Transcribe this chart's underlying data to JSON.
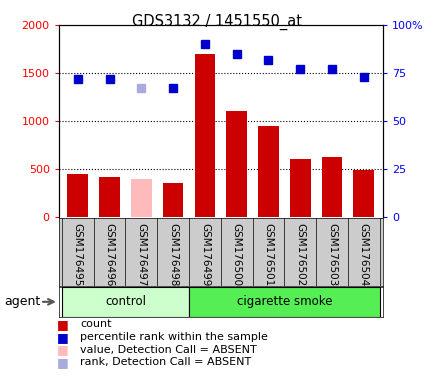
{
  "title": "GDS3132 / 1451550_at",
  "samples": [
    "GSM176495",
    "GSM176496",
    "GSM176497",
    "GSM176498",
    "GSM176499",
    "GSM176500",
    "GSM176501",
    "GSM176502",
    "GSM176503",
    "GSM176504"
  ],
  "counts": [
    450,
    420,
    400,
    350,
    1700,
    1100,
    950,
    600,
    620,
    490
  ],
  "percentile_ranks": [
    72,
    72,
    67,
    67,
    90,
    85,
    82,
    77,
    77,
    73
  ],
  "absent_indices": [
    2
  ],
  "bar_color_normal": "#cc0000",
  "bar_color_absent": "#ffbbbb",
  "dot_color_normal": "#0000cc",
  "dot_color_absent": "#aaaadd",
  "control_indices": [
    0,
    1,
    2,
    3
  ],
  "smoke_indices": [
    4,
    5,
    6,
    7,
    8,
    9
  ],
  "control_label": "control",
  "smoke_label": "cigarette smoke",
  "control_color": "#ccffcc",
  "smoke_color": "#55ee55",
  "ylim_left": [
    0,
    2000
  ],
  "ylim_right": [
    0,
    100
  ],
  "yticks_left": [
    0,
    500,
    1000,
    1500,
    2000
  ],
  "yticks_right": [
    0,
    25,
    50,
    75,
    100
  ],
  "yticklabels_right": [
    "0",
    "25",
    "50",
    "75",
    "100%"
  ],
  "grid_values": [
    500,
    1000,
    1500
  ],
  "plot_bg_color": "#ffffff",
  "agent_label": "agent",
  "label_bg_color": "#cccccc",
  "legend_items": [
    {
      "label": "count",
      "color": "#cc0000"
    },
    {
      "label": "percentile rank within the sample",
      "color": "#0000cc"
    },
    {
      "label": "value, Detection Call = ABSENT",
      "color": "#ffbbbb"
    },
    {
      "label": "rank, Detection Call = ABSENT",
      "color": "#aaaadd"
    }
  ]
}
